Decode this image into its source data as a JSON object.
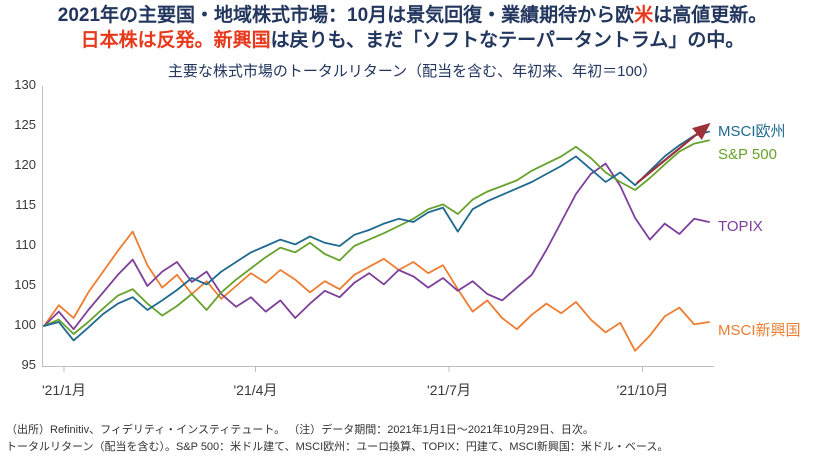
{
  "header": {
    "line1": {
      "seg1": "2021年の主要国・地域株式市場：10月は景気回復・業績期待から欧",
      "seg2": "米",
      "seg3": "は高値更新。"
    },
    "line2": {
      "seg1": "日本株は反発。",
      "seg2": "新興国",
      "seg3": "は戻りも、まだ「ソフトなテーパータントラム」の中。"
    }
  },
  "chart_data": {
    "type": "line",
    "title": "主要な株式市場のトータルリターン（配当を含む、年初来、年初＝100）",
    "xlabel": "",
    "ylabel": "",
    "ylim": [
      95,
      130
    ],
    "yticks": [
      130,
      125,
      120,
      115,
      110,
      105,
      100,
      95
    ],
    "xticks": [
      {
        "label": "'21/1月",
        "pos": 0.03
      },
      {
        "label": "'21/4月",
        "pos": 0.318
      },
      {
        "label": "'21/7月",
        "pos": 0.609
      },
      {
        "label": "'21/10月",
        "pos": 0.9
      }
    ],
    "grid": false,
    "legend_position": "right-end-labels",
    "series": [
      {
        "name": "MSCI欧州",
        "color": "#1e6a8e",
        "values": [
          100,
          100.5,
          98.2,
          99.8,
          101.5,
          102.8,
          103.6,
          102.0,
          103.2,
          104.5,
          106.0,
          105.2,
          106.8,
          108.0,
          109.2,
          110.0,
          110.8,
          110.2,
          111.2,
          110.4,
          110.0,
          111.4,
          112.0,
          112.8,
          113.4,
          113.0,
          114.2,
          114.8,
          111.8,
          114.6,
          115.6,
          116.4,
          117.2,
          118.0,
          119.0,
          120.0,
          121.2,
          119.6,
          118.0,
          119.2,
          117.6,
          119.4,
          121.2,
          122.6,
          123.8,
          124.3
        ]
      },
      {
        "name": "S&P 500",
        "color": "#67a22d",
        "values": [
          100,
          100.8,
          99.0,
          100.5,
          102.2,
          103.8,
          104.6,
          102.8,
          101.3,
          102.5,
          104.0,
          102.0,
          104.2,
          105.8,
          107.2,
          108.6,
          109.8,
          109.2,
          110.4,
          109.0,
          108.2,
          110.0,
          110.8,
          111.6,
          112.5,
          113.4,
          114.6,
          115.2,
          114.0,
          115.8,
          116.8,
          117.5,
          118.2,
          119.4,
          120.3,
          121.2,
          122.4,
          121.0,
          119.2,
          118.0,
          117.0,
          118.5,
          120.2,
          121.8,
          122.8,
          123.2
        ]
      },
      {
        "name": "TOPIX",
        "color": "#7d3f98",
        "values": [
          100,
          101.8,
          99.6,
          102.0,
          104.2,
          106.4,
          108.3,
          105.0,
          106.8,
          108.0,
          105.5,
          106.8,
          104.0,
          102.4,
          103.6,
          101.8,
          103.2,
          101.0,
          102.8,
          104.4,
          103.6,
          105.4,
          106.6,
          105.2,
          107.0,
          106.2,
          104.8,
          106.0,
          104.4,
          105.6,
          104.0,
          103.2,
          104.8,
          106.4,
          109.5,
          113.0,
          116.5,
          119.0,
          120.3,
          117.5,
          113.5,
          110.8,
          112.8,
          111.5,
          113.4,
          113.0
        ]
      },
      {
        "name": "MSCI新興国",
        "color": "#ed7d31",
        "values": [
          100,
          102.6,
          101.0,
          104.2,
          106.8,
          109.4,
          111.8,
          107.6,
          104.8,
          106.4,
          104.0,
          105.6,
          103.4,
          105.0,
          106.6,
          105.4,
          107.0,
          105.8,
          104.2,
          105.6,
          104.6,
          106.4,
          107.4,
          108.4,
          107.0,
          108.0,
          106.6,
          107.6,
          104.6,
          101.8,
          103.2,
          101.0,
          99.6,
          101.4,
          102.8,
          101.6,
          103.0,
          100.8,
          99.2,
          100.4,
          96.9,
          98.8,
          101.2,
          102.3,
          100.2,
          100.5
        ]
      }
    ],
    "annotation_arrow": {
      "color": "#9d3039"
    }
  },
  "footer": {
    "line1": "（出所）Refinitiv、フィデリティ・インスティテュート。 （注）データ期間：2021年1月1日～2021年10月29日、日次。",
    "line2": "トータルリターン（配当を含む）。S&P 500：米ドル建て、MSCI欧州：ユーロ換算、TOPIX：円建て、MSCI新興国：米ドル・ベース。"
  },
  "colors": {
    "navy": "#22365e",
    "red": "#e8391d",
    "axis": "#bdbdbd",
    "tick_text": "#3a3a3a"
  }
}
